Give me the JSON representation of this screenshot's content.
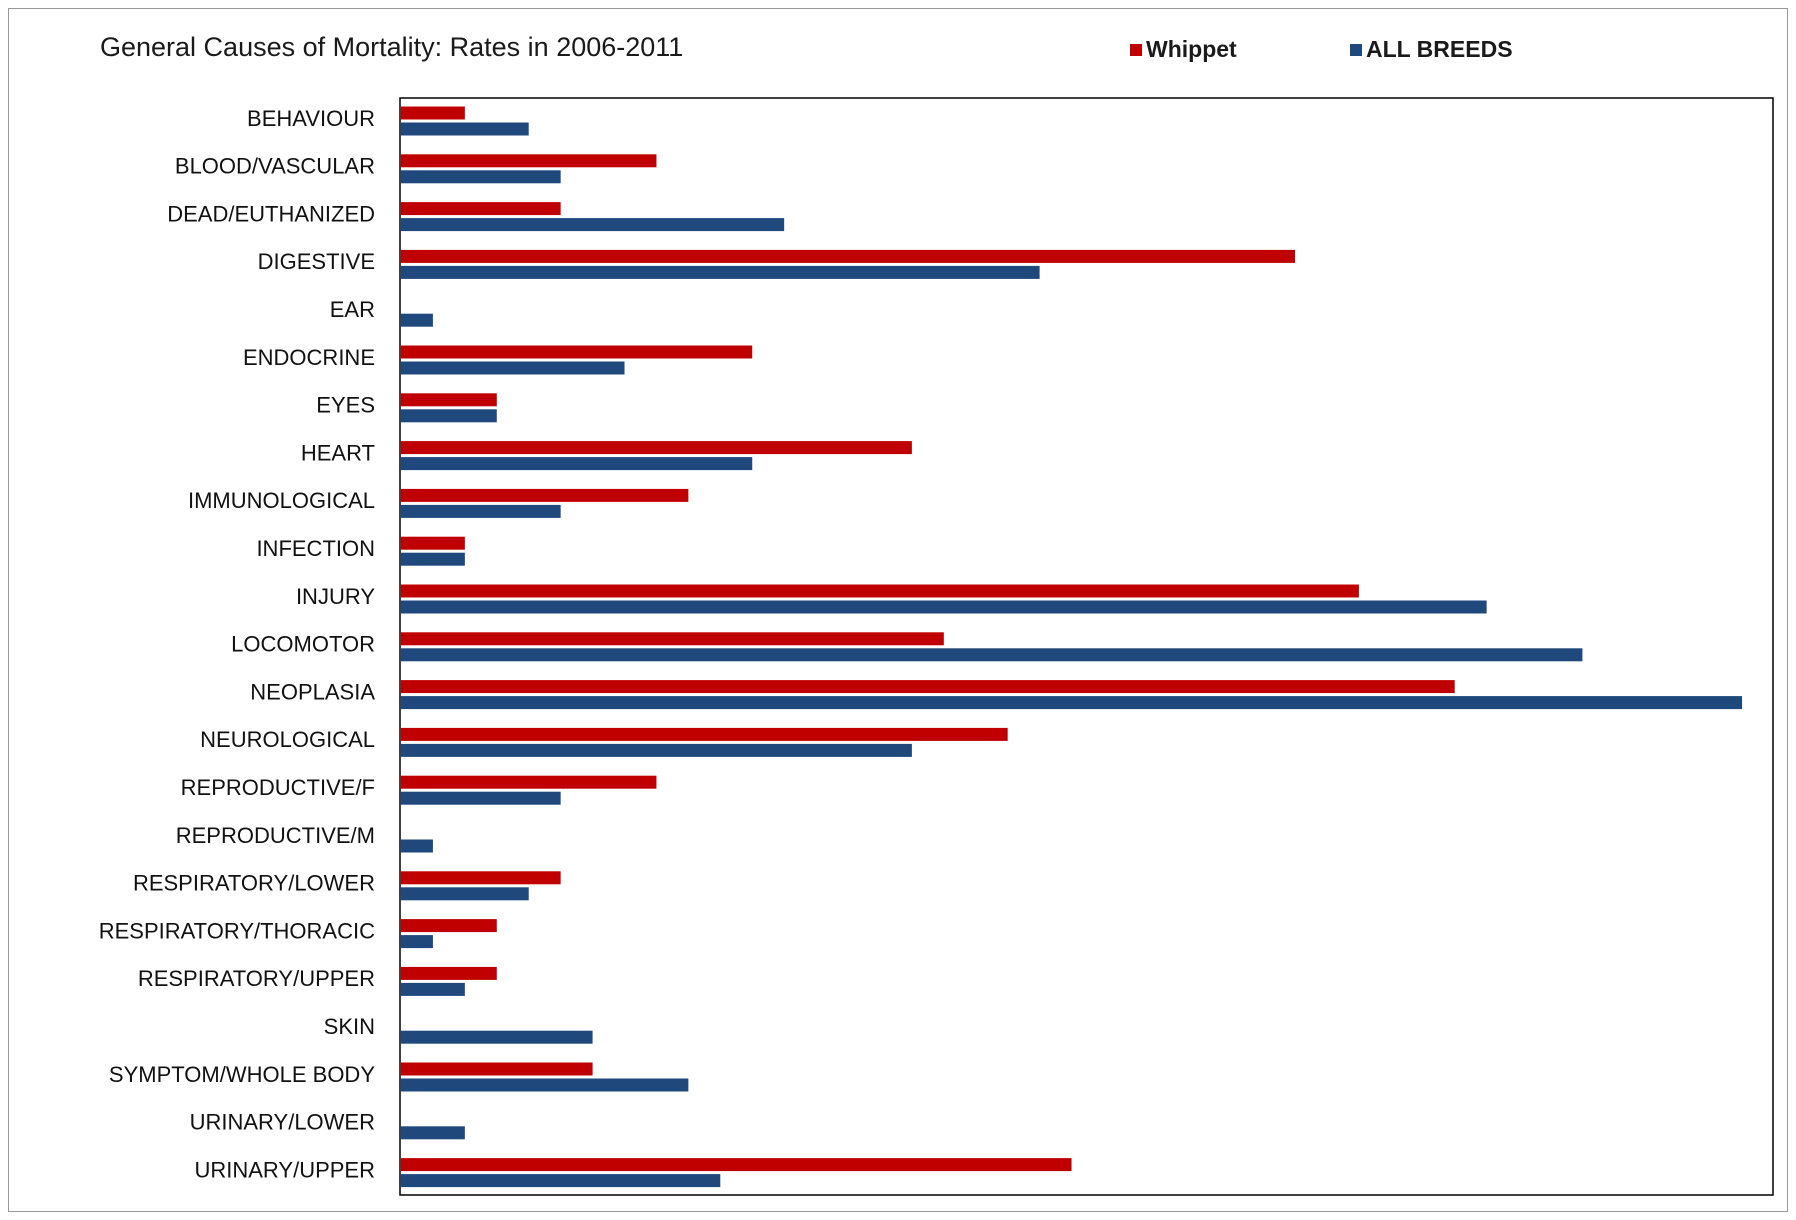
{
  "chart_data": {
    "type": "bar",
    "orientation": "horizontal",
    "title": "General Causes of Mortality: Rates in 2006-2011",
    "xlabel": "",
    "ylabel": "",
    "xlim": [
      0,
      43
    ],
    "grid": false,
    "legend_position": "top-right",
    "categories": [
      "BEHAVIOUR",
      "BLOOD/VASCULAR",
      "DEAD/EUTHANIZED",
      "DIGESTIVE",
      "EAR",
      "ENDOCRINE",
      "EYES",
      "HEART",
      "IMMUNOLOGICAL",
      "INFECTION",
      "INJURY",
      "LOCOMOTOR",
      "NEOPLASIA",
      "NEUROLOGICAL",
      "REPRODUCTIVE/F",
      "REPRODUCTIVE/M",
      "RESPIRATORY/LOWER",
      "RESPIRATORY/THORACIC",
      "RESPIRATORY/UPPER",
      "SKIN",
      "SYMPTOM/WHOLE BODY",
      "URINARY/LOWER",
      "URINARY/UPPER"
    ],
    "series": [
      {
        "name": "Whippet",
        "color": "#c00000",
        "values": [
          2,
          8,
          5,
          28,
          0,
          11,
          3,
          16,
          9,
          2,
          30,
          17,
          33,
          19,
          8,
          0,
          5,
          3,
          3,
          0,
          6,
          0,
          21
        ]
      },
      {
        "name": "ALL BREEDS",
        "color": "#1f497d",
        "values": [
          4,
          5,
          12,
          20,
          1,
          7,
          3,
          11,
          5,
          2,
          34,
          37,
          42,
          16,
          5,
          1,
          4,
          1,
          2,
          6,
          9,
          2,
          10
        ]
      }
    ]
  }
}
